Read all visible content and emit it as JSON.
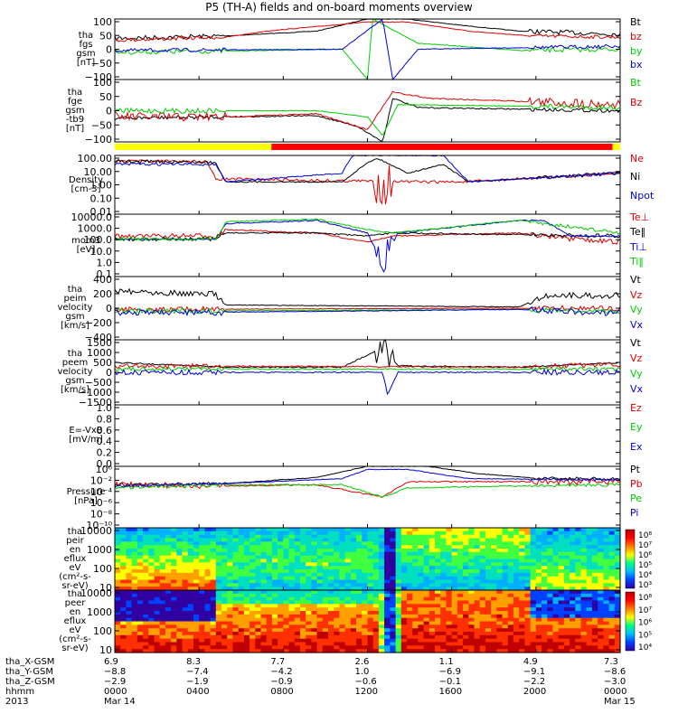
{
  "title": "P5 (TH-A) fields and on-board moments overview",
  "colors": {
    "black": "#000000",
    "red": "#dd0000",
    "green": "#00cc00",
    "blue": "#0000dd"
  },
  "chart_data": {
    "type": "line",
    "panels": [
      {
        "id": "fgs",
        "ylabel": [
          "tha",
          "fgs",
          "gsm",
          "[nT]"
        ],
        "yticks": [
          "100",
          "50",
          "0",
          "−50",
          "−100"
        ],
        "legend": [
          {
            "label": "Bt",
            "color": "black"
          },
          {
            "label": "bz",
            "color": "red"
          },
          {
            "label": "by",
            "color": "green"
          },
          {
            "label": "bx",
            "color": "blue"
          }
        ]
      },
      {
        "id": "fge",
        "ylabel": [
          "tha",
          "fge",
          "gsm",
          "-tb9",
          "[nT]"
        ],
        "yticks": [
          "100",
          "50",
          "0",
          "−50",
          "−100"
        ],
        "legend": [
          {
            "label": "Bt",
            "color": "green"
          },
          {
            "label": "Bz",
            "color": "red"
          }
        ]
      },
      {
        "id": "density",
        "ylabel": [
          "Density",
          "[cm-3]"
        ],
        "yticks": [
          "100.00",
          "10.00",
          "1.00",
          "0.10",
          "0.01"
        ],
        "legend": [
          {
            "label": "Ne",
            "color": "red"
          },
          {
            "label": "Ni",
            "color": "black"
          },
          {
            "label": "Npot",
            "color": "blue"
          }
        ]
      },
      {
        "id": "temp",
        "ylabel": [
          "mom3",
          "[eV]"
        ],
        "yticks": [
          "10000.0",
          "1000.0",
          "100.0",
          "10.0",
          "1.0",
          "0.1"
        ],
        "legend": [
          {
            "label": "Te⊥",
            "color": "red"
          },
          {
            "label": "Te‖",
            "color": "black"
          },
          {
            "label": "Ti⊥",
            "color": "blue"
          },
          {
            "label": "Ti‖",
            "color": "green"
          }
        ]
      },
      {
        "id": "peim",
        "ylabel": [
          "tha",
          "peim",
          "velocity",
          "gsm",
          "[km/s]"
        ],
        "yticks": [
          "400",
          "200",
          "0",
          "−200",
          "−400"
        ],
        "legend": [
          {
            "label": "Vt",
            "color": "black"
          },
          {
            "label": "Vz",
            "color": "red"
          },
          {
            "label": "Vy",
            "color": "green"
          },
          {
            "label": "Vx",
            "color": "blue"
          }
        ]
      },
      {
        "id": "peem",
        "ylabel": [
          "tha",
          "peem",
          "velocity",
          "gsm",
          "[km/s]"
        ],
        "yticks": [
          "1500",
          "1000",
          "500",
          "0",
          "−500",
          "−1000",
          "−1500"
        ],
        "legend": [
          {
            "label": "Vt",
            "color": "black"
          },
          {
            "label": "Vz",
            "color": "red"
          },
          {
            "label": "Vy",
            "color": "green"
          },
          {
            "label": "Vx",
            "color": "blue"
          }
        ]
      },
      {
        "id": "exb",
        "ylabel": [
          "E=-VxB",
          "[mV/m]"
        ],
        "yticks": [
          "1.0",
          "0.8",
          "0.6",
          "0.4",
          "0.2",
          "0.0"
        ],
        "legend": [
          {
            "label": "Ez",
            "color": "red"
          },
          {
            "label": "Ey",
            "color": "green"
          },
          {
            "label": "Ex",
            "color": "blue"
          }
        ]
      },
      {
        "id": "pressure",
        "ylabel": [
          "Pressure",
          "[nPa]"
        ],
        "yticks": [
          "10⁰",
          "10⁻²",
          "10⁻⁴",
          "10⁻⁶",
          "10⁻⁸",
          "10⁻¹⁰"
        ],
        "legend": [
          {
            "label": "Pt",
            "color": "black"
          },
          {
            "label": "Pb",
            "color": "red"
          },
          {
            "label": "Pe",
            "color": "green"
          },
          {
            "label": "Pi",
            "color": "blue"
          }
        ]
      },
      {
        "id": "peir",
        "ylabel": [
          "tha",
          "peir",
          "en",
          "eflux",
          "eV",
          "(cm²-s-",
          "sr-eV)"
        ],
        "yticks": [
          "10000",
          "1000",
          "100",
          "10"
        ],
        "colorbar": [
          "10⁸",
          "10⁷",
          "10⁶",
          "10⁵",
          "10⁴",
          "10³"
        ]
      },
      {
        "id": "peer",
        "ylabel": [
          "tha",
          "peer",
          "en",
          "eflux",
          "eV",
          "(cm²-s-",
          "sr-eV)"
        ],
        "yticks": [
          "10000",
          "1000",
          "100",
          "10"
        ],
        "colorbar": [
          "10⁸",
          "10⁷",
          "10⁶",
          "10⁵",
          "10⁴"
        ]
      }
    ],
    "x_axis": {
      "labels": [
        "tha_X-GSM",
        "tha_Y-GSM",
        "tha_Z-GSM",
        "hhmm",
        "2013"
      ],
      "columns": [
        [
          "6.9",
          "−8.8",
          "−2.9",
          "0000",
          "Mar 14"
        ],
        [
          "8.3",
          "−7.4",
          "−1.9",
          "0400",
          ""
        ],
        [
          "7.7",
          "−4.2",
          "−0.9",
          "0800",
          ""
        ],
        [
          "2.6",
          "1.0",
          "−0.6",
          "1200",
          ""
        ],
        [
          "1.1",
          "−6.9",
          "−0.1",
          "1600",
          ""
        ],
        [
          "4.9",
          "−9.1",
          "−2.2",
          "2000",
          ""
        ],
        [
          "7.3",
          "−8.6",
          "−3.0",
          "0000",
          "Mar 15"
        ]
      ]
    },
    "status_bar": {
      "segments": [
        {
          "from": 0.0,
          "to": 0.31,
          "color": "#ffff00"
        },
        {
          "from": 0.31,
          "to": 0.985,
          "color": "#ff0000"
        },
        {
          "from": 0.985,
          "to": 1.0,
          "color": "#ffff00"
        }
      ]
    }
  }
}
